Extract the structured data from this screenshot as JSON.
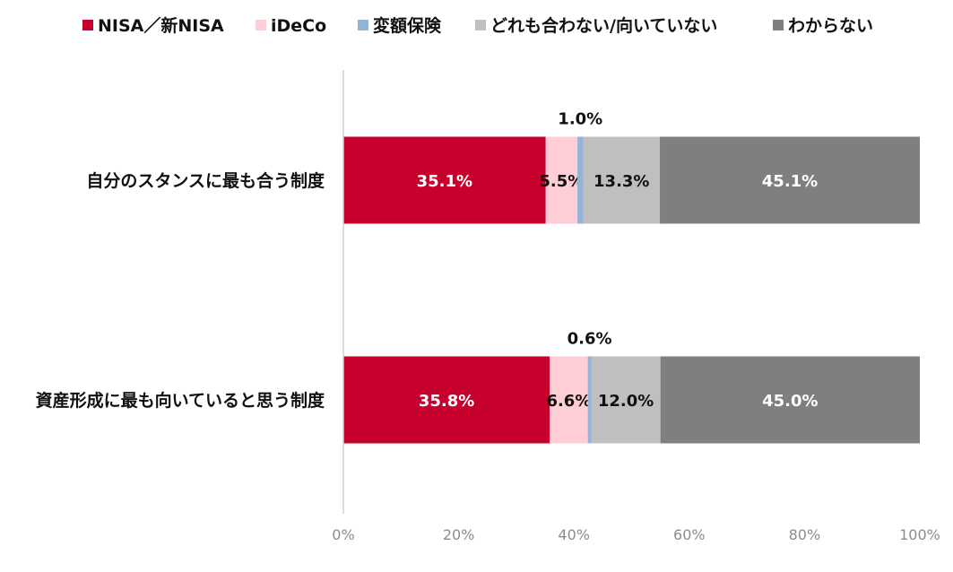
{
  "chart_data": {
    "type": "bar",
    "orientation": "horizontal",
    "stacked": true,
    "percent_stacked": true,
    "categories": [
      "自分のスタンスに最も合う制度",
      "資産形成に最も向いていると思う制度"
    ],
    "series": [
      {
        "name": "NISA／新NISA",
        "color": "#c8002d",
        "label_color": "#ffffff",
        "values": [
          35.1,
          35.8
        ],
        "labels": [
          "35.1%",
          "35.8%"
        ]
      },
      {
        "name": "iDeCo",
        "color": "#ffcdd6",
        "label_color": "#111111",
        "values": [
          5.5,
          6.6
        ],
        "labels": [
          "5.5%",
          "6.6%"
        ]
      },
      {
        "name": "変額保険",
        "color": "#95b3d7",
        "label_color": "#111111",
        "values": [
          1.0,
          0.6
        ],
        "labels": [
          "1.0%",
          "0.6%"
        ],
        "label_position": "above"
      },
      {
        "name": "どれも合わない/向いていない",
        "color": "#bfbfbf",
        "label_color": "#111111",
        "values": [
          13.3,
          12.0
        ],
        "labels": [
          "13.3%",
          "12.0%"
        ]
      },
      {
        "name": "わからない",
        "color": "#7f7f7f",
        "label_color": "#ffffff",
        "values": [
          45.1,
          45.0
        ],
        "labels": [
          "45.1%",
          "45.0%"
        ]
      }
    ],
    "xlim": [
      0,
      100
    ],
    "x_ticks": [
      "0%",
      "20%",
      "40%",
      "60%",
      "80%",
      "100%"
    ],
    "legend_position": "top",
    "grid": false
  }
}
